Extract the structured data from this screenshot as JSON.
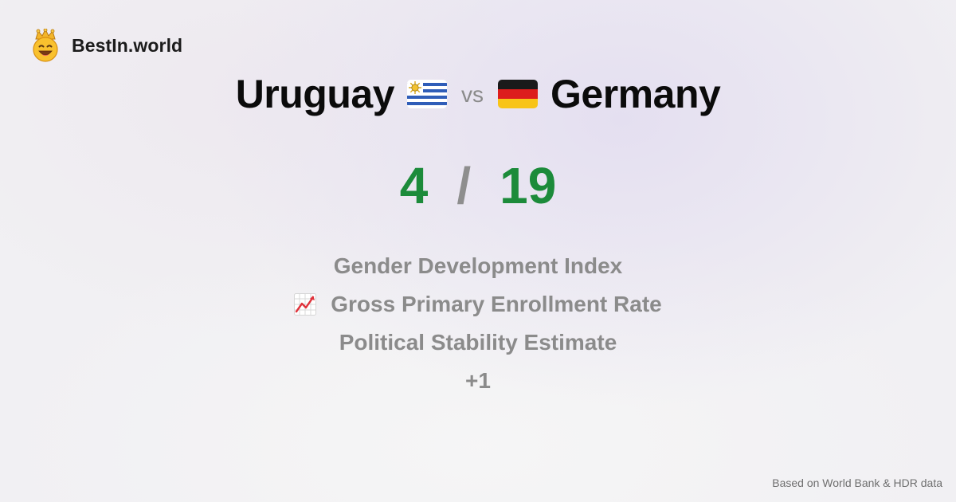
{
  "brand": {
    "name": "BestIn.world",
    "icon": "crown-smiley-icon"
  },
  "comparison": {
    "left_country": "Uruguay",
    "left_flag": "uruguay-flag-icon",
    "vs_label": "vs",
    "right_country": "Germany",
    "right_flag": "germany-flag-icon"
  },
  "score": {
    "left": "4",
    "separator": "/",
    "right": "19",
    "color": "#1c8b3a"
  },
  "metrics": [
    {
      "label": "Gender Development Index",
      "icon": ""
    },
    {
      "label": "Gross Primary Enrollment Rate",
      "icon": "chart-increasing-icon"
    },
    {
      "label": "Political Stability Estimate",
      "icon": ""
    }
  ],
  "more_label": "+1",
  "footer": {
    "source": "Based on World Bank & HDR data"
  }
}
